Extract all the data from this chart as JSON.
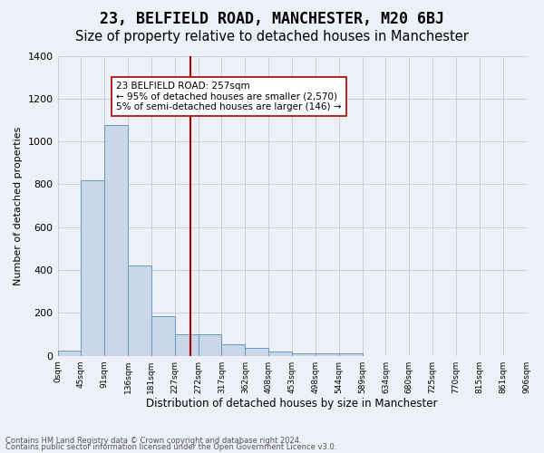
{
  "title": "23, BELFIELD ROAD, MANCHESTER, M20 6BJ",
  "subtitle": "Size of property relative to detached houses in Manchester",
  "xlabel": "Distribution of detached houses by size in Manchester",
  "ylabel": "Number of detached properties",
  "footnote1": "Contains HM Land Registry data © Crown copyright and database right 2024.",
  "footnote2": "Contains public sector information licensed under the Open Government Licence v3.0.",
  "bin_edge_labels": [
    "0sqm",
    "45sqm",
    "91sqm",
    "136sqm",
    "181sqm",
    "227sqm",
    "272sqm",
    "317sqm",
    "362sqm",
    "408sqm",
    "453sqm",
    "498sqm",
    "544sqm",
    "589sqm",
    "634sqm",
    "680sqm",
    "725sqm",
    "770sqm",
    "815sqm",
    "861sqm",
    "906sqm"
  ],
  "bar_values": [
    25,
    820,
    1075,
    420,
    185,
    100,
    100,
    52,
    35,
    18,
    10,
    10,
    13,
    0,
    0,
    0,
    0,
    0,
    0,
    0
  ],
  "bar_color": "#c8d8e8",
  "bar_edge_color": "#6699bb",
  "vline_color": "#aa0000",
  "annotation_text": "23 BELFIELD ROAD: 257sqm\n← 95% of detached houses are smaller (2,570)\n5% of semi-detached houses are larger (146) →",
  "annotation_box_color": "#ffffff",
  "annotation_box_edge": "#aa0000",
  "ylim": [
    0,
    1400
  ],
  "yticks": [
    0,
    200,
    400,
    600,
    800,
    1000,
    1200,
    1400
  ],
  "grid_color": "#ccccdd",
  "bg_color": "#eef0f8",
  "title_fontsize": 12,
  "subtitle_fontsize": 10.5
}
